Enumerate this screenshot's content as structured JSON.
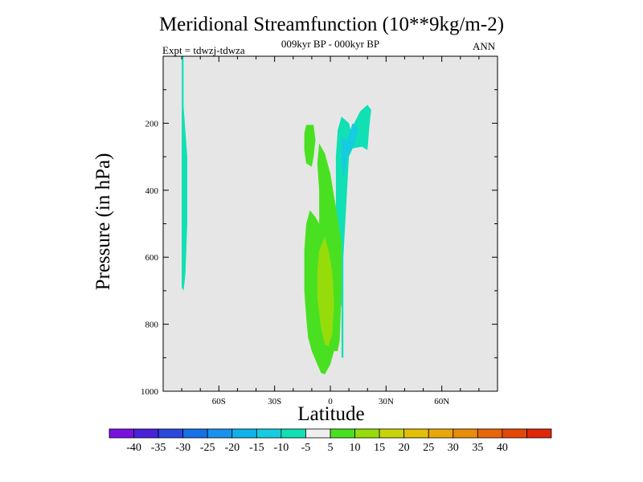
{
  "title": "Meridional Streamfunction (10**9kg/m-2)",
  "subtitle": "009kyr BP - 000kyr BP",
  "expt": "Expt = tdwzj-tdwza",
  "season": "ANN",
  "colors": {
    "background": "#e6e6e6",
    "levels": [
      "#7a10e0",
      "#4a20d8",
      "#2a48dc",
      "#1670e6",
      "#1892ec",
      "#10b2ea",
      "#16cce0",
      "#10e0b4",
      "#eeeeee",
      "#4ae022",
      "#96dc0a",
      "#c8d40a",
      "#e4bf0a",
      "#e8a80a",
      "#e88c0a",
      "#e8660a",
      "#e44808",
      "#e02808"
    ]
  },
  "chart_data": {
    "type": "contour",
    "title": "Meridional Streamfunction (10**9kg/m-2)",
    "subtitle": "009kyr BP - 000kyr BP",
    "xlabel": "Latitude",
    "ylabel": "Pressure (in hPa)",
    "xlim": [
      -90,
      90
    ],
    "ylim": [
      1000,
      0
    ],
    "xticks": [
      "60S",
      "30S",
      "0",
      "30N",
      "60N"
    ],
    "xtick_values": [
      -60,
      -30,
      0,
      30,
      60
    ],
    "yticks": [
      "200",
      "400",
      "600",
      "800",
      "1000"
    ],
    "ytick_values": [
      200,
      400,
      600,
      800,
      1000
    ],
    "colorbar_labels": [
      "-40",
      "-35",
      "-30",
      "-25",
      "-20",
      "-15",
      "-10",
      "-5",
      "5",
      "10",
      "15",
      "20",
      "25",
      "30",
      "35",
      "40"
    ],
    "colorbar_values": [
      -40,
      -35,
      -30,
      -25,
      -20,
      -15,
      -10,
      -5,
      5,
      10,
      15,
      20,
      25,
      30,
      35,
      40
    ],
    "regions": [
      {
        "name": "sh-neg-filament",
        "level": "-10 to -5",
        "fill": "#10e0b4",
        "polygon": [
          [
            -80,
            0
          ],
          [
            -79,
            0
          ],
          [
            -79,
            150
          ],
          [
            -77,
            300
          ],
          [
            -77,
            500
          ],
          [
            -78,
            650
          ],
          [
            -79,
            700
          ],
          [
            -80,
            690
          ],
          [
            -80,
            500
          ],
          [
            -80,
            300
          ],
          [
            -80,
            100
          ]
        ]
      },
      {
        "name": "nh-neg-plume",
        "level": "-10 to -5",
        "fill": "#10e0b4",
        "polygon": [
          [
            6,
            180
          ],
          [
            10,
            200
          ],
          [
            11,
            220
          ],
          [
            16,
            165
          ],
          [
            20,
            145
          ],
          [
            22,
            160
          ],
          [
            21,
            210
          ],
          [
            20,
            280
          ],
          [
            17,
            270
          ],
          [
            12,
            275
          ],
          [
            10,
            300
          ],
          [
            9,
            400
          ],
          [
            8,
            500
          ],
          [
            7,
            600
          ],
          [
            7,
            750
          ],
          [
            7,
            900
          ],
          [
            6,
            900
          ],
          [
            6,
            750
          ],
          [
            5,
            700
          ],
          [
            4,
            620
          ],
          [
            3,
            500
          ],
          [
            3,
            300
          ],
          [
            4,
            220
          ]
        ]
      },
      {
        "name": "nh-neg-core",
        "level": "-15 to -10",
        "fill": "#16cce0",
        "polygon": [
          [
            6,
            240
          ],
          [
            9,
            250
          ],
          [
            12,
            200
          ],
          [
            15,
            215
          ],
          [
            13,
            265
          ],
          [
            9,
            300
          ],
          [
            8,
            340
          ],
          [
            7,
            360
          ],
          [
            6,
            310
          ]
        ]
      },
      {
        "name": "upper-pos-blob",
        "level": "5 to 10",
        "fill": "#4ae022",
        "polygon": [
          [
            -13,
            205
          ],
          [
            -9,
            205
          ],
          [
            -8,
            250
          ],
          [
            -9,
            300
          ],
          [
            -10,
            330
          ],
          [
            -13,
            320
          ],
          [
            -14,
            280
          ],
          [
            -14,
            230
          ]
        ]
      },
      {
        "name": "pos-column",
        "level": "5 to 10",
        "fill": "#4ae022",
        "polygon": [
          [
            -6,
            260
          ],
          [
            -3,
            290
          ],
          [
            0,
            350
          ],
          [
            3,
            450
          ],
          [
            6,
            560
          ],
          [
            6,
            700
          ],
          [
            5,
            850
          ],
          [
            4,
            880
          ],
          [
            2,
            880
          ],
          [
            0,
            920
          ],
          [
            -3,
            950
          ],
          [
            -5,
            945
          ],
          [
            -7,
            920
          ],
          [
            -10,
            880
          ],
          [
            -12,
            840
          ],
          [
            -13,
            780
          ],
          [
            -14,
            700
          ],
          [
            -14,
            580
          ],
          [
            -13,
            500
          ],
          [
            -11,
            460
          ],
          [
            -8,
            480
          ],
          [
            -6,
            500
          ],
          [
            -6,
            400
          ],
          [
            -7,
            320
          ]
        ]
      },
      {
        "name": "pos-core",
        "level": "10 to 15",
        "fill": "#96dc0a",
        "polygon": [
          [
            -3,
            540
          ],
          [
            -1,
            580
          ],
          [
            1,
            640
          ],
          [
            2,
            740
          ],
          [
            1,
            830
          ],
          [
            -1,
            865
          ],
          [
            -3,
            860
          ],
          [
            -5,
            810
          ],
          [
            -7,
            720
          ],
          [
            -7,
            640
          ],
          [
            -6,
            580
          ]
        ]
      }
    ]
  }
}
